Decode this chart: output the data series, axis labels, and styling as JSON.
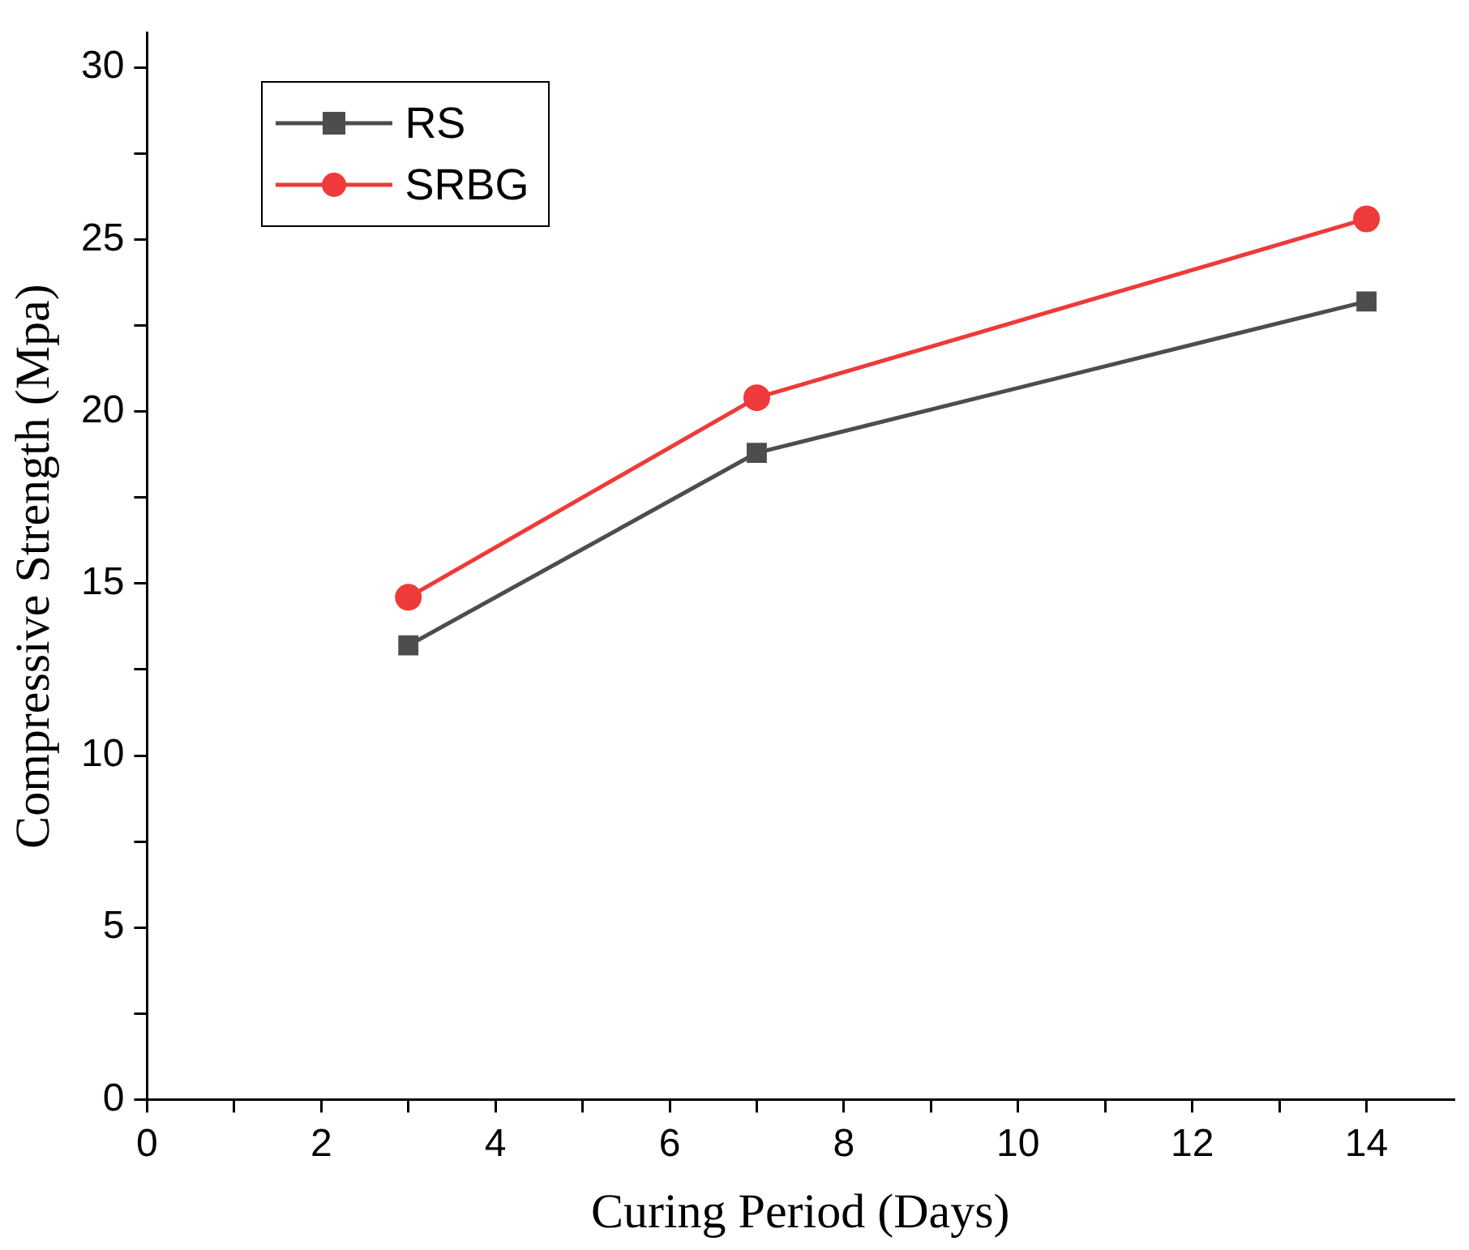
{
  "chart_data": {
    "type": "line",
    "xlabel": "Curing Period (Days)",
    "ylabel": "Compressive Strength (Mpa)",
    "x": [
      3,
      7,
      14
    ],
    "series": [
      {
        "name": "RS",
        "color": "#4d4d4d",
        "values": [
          13.2,
          18.8,
          23.2
        ],
        "marker": "square"
      },
      {
        "name": "SRBG",
        "color": "#ee3a3a",
        "values": [
          14.6,
          20.4,
          25.6
        ],
        "marker": "circle"
      }
    ],
    "xlim": [
      0,
      15
    ],
    "xticks": [
      0,
      {
        "value": 1,
        "label": null
      },
      2,
      {
        "value": 3,
        "label": null
      },
      4,
      {
        "value": 5,
        "label": null
      },
      6,
      {
        "value": 7,
        "label": null
      },
      8,
      {
        "value": 9,
        "label": null
      },
      10,
      {
        "value": 11,
        "label": null
      },
      12,
      {
        "value": 13,
        "label": null
      },
      14
    ],
    "ylim": [
      0,
      31
    ],
    "yticks": [
      0,
      {
        "value": 2.5,
        "label": null
      },
      5,
      {
        "value": 7.5,
        "label": null
      },
      10,
      {
        "value": 12.5,
        "label": null
      },
      15,
      {
        "value": 17.5,
        "label": null
      },
      20,
      {
        "value": 22.5,
        "label": null
      },
      25,
      {
        "value": 27.5,
        "label": null
      },
      30
    ],
    "grid": false,
    "legend": "top left",
    "line_style": "solid"
  }
}
